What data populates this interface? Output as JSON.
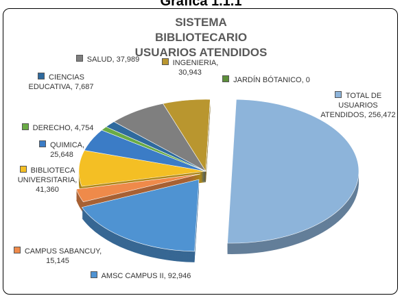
{
  "header": "Gráfica 1.1.1",
  "chart_data": {
    "type": "pie",
    "title": "SISTEMA BIBLIOTECARIO USUARIOS ATENDIDOS",
    "categories": [
      "TOTAL DE USUARIOS ATENDIDOS",
      "AMSC  CAMPUS II",
      "CAMPUS SABANCUY",
      "BIBLIOTECA UNIVERSITARIA",
      "QUIMICA",
      "DERECHO",
      "CIENCIAS EDUCATIVA",
      "SALUD",
      "INGENIERIA",
      "JARDÍN BÓTANICO"
    ],
    "values": [
      256472,
      92946,
      15145,
      41360,
      25648,
      4754,
      7687,
      37989,
      30943,
      0
    ],
    "value_labels": [
      "256,472",
      "92,946",
      "15,145",
      "41,360",
      "25,648",
      "4,754",
      "7,687",
      "37,989",
      "30,943",
      "0"
    ],
    "colors": [
      "#8db4da",
      "#4f93d2",
      "#ef8a4a",
      "#f4bf24",
      "#3b7cc6",
      "#6aab45",
      "#2f6a9e",
      "#7f7f7f",
      "#b9962f",
      "#5d8f3a"
    ]
  }
}
